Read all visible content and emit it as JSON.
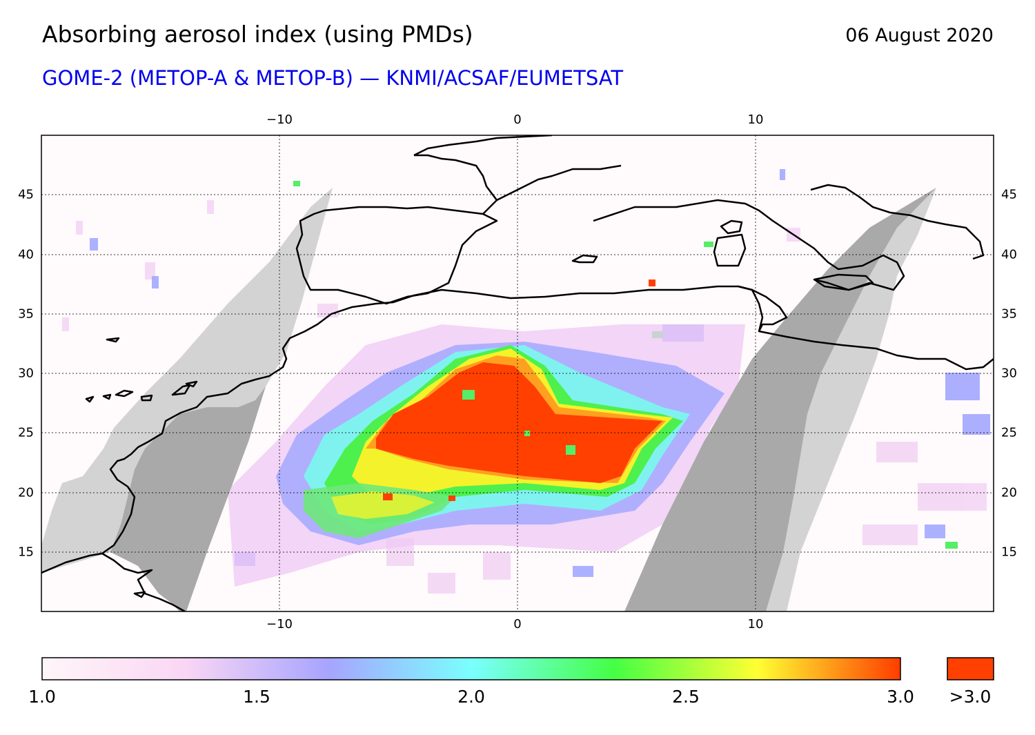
{
  "header": {
    "title": "Absorbing aerosol index (using PMDs)",
    "date": "06 August 2020",
    "subtitle": "GOME-2 (METOP-A & METOP-B) — KNMI/ACSAF/EUMETSAT"
  },
  "map": {
    "lon_range": [
      -20,
      20
    ],
    "lat_range": [
      10,
      50
    ],
    "lon_ticks": [
      "−10",
      "0",
      "10"
    ],
    "lat_ticks": [
      "15",
      "20",
      "25",
      "30",
      "35",
      "40",
      "45"
    ],
    "gridlines": "dotted",
    "colors": {
      "background": "#fffafc",
      "coast": "#000000",
      "no_data_light": "#d3d3d3",
      "no_data_dark": "#a9a9a9",
      "high_aerosol": "#ff4000"
    }
  },
  "colorbar": {
    "labels": [
      "1.0",
      "1.5",
      "2.0",
      "2.5",
      "3.0"
    ],
    "over_label": ">3.0",
    "min": 1.0,
    "max": 3.0,
    "over_color": "#ff4000",
    "stops": [
      "#fff6f8",
      "#f9d6f4",
      "#a7a4ff",
      "#7affff",
      "#44ff44",
      "#ffff33",
      "#ff3d00"
    ]
  }
}
